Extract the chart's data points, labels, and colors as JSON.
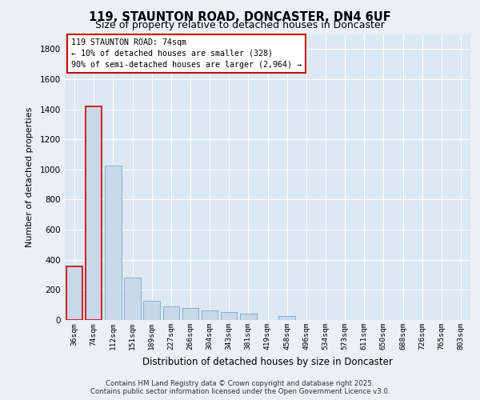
{
  "title": "119, STAUNTON ROAD, DONCASTER, DN4 6UF",
  "subtitle": "Size of property relative to detached houses in Doncaster",
  "xlabel": "Distribution of detached houses by size in Doncaster",
  "ylabel": "Number of detached properties",
  "bar_color": "#c8d8ea",
  "bar_edge_color": "#6699bb",
  "highlight_edge_color": "#cc0000",
  "annotation_box_color": "#ffffff",
  "annotation_edge_color": "#cc0000",
  "annotation_text_line1": "119 STAUNTON ROAD: 74sqm",
  "annotation_text_line2": "← 10% of detached houses are smaller (328)",
  "annotation_text_line3": "90% of semi-detached houses are larger (2,964) →",
  "categories": [
    "36sqm",
    "74sqm",
    "112sqm",
    "151sqm",
    "189sqm",
    "227sqm",
    "266sqm",
    "304sqm",
    "343sqm",
    "381sqm",
    "419sqm",
    "458sqm",
    "496sqm",
    "534sqm",
    "573sqm",
    "611sqm",
    "650sqm",
    "688sqm",
    "726sqm",
    "765sqm",
    "803sqm"
  ],
  "values": [
    355,
    1420,
    1025,
    280,
    125,
    90,
    82,
    65,
    52,
    40,
    0,
    28,
    0,
    0,
    0,
    0,
    0,
    0,
    0,
    0,
    0
  ],
  "ylim": [
    0,
    1900
  ],
  "yticks": [
    0,
    200,
    400,
    600,
    800,
    1000,
    1200,
    1400,
    1600,
    1800
  ],
  "background_color": "#eaf0f6",
  "plot_bg_color": "#dce8f2",
  "footer_line1": "Contains HM Land Registry data © Crown copyright and database right 2025.",
  "footer_line2": "Contains public sector information licensed under the Open Government Licence v3.0."
}
